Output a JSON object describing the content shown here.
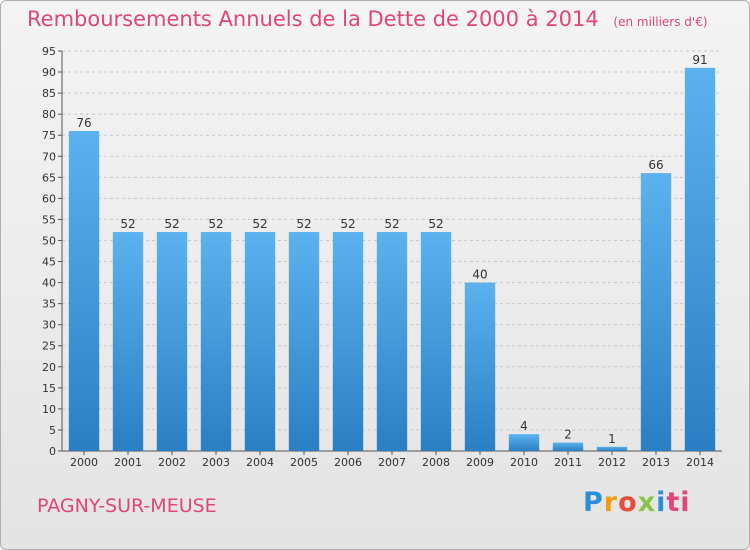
{
  "chart_data": {
    "type": "bar",
    "title": "Remboursements Annuels de la Dette de 2000 à 2014",
    "unit_note": "(en milliers d'€)",
    "categories": [
      "2000",
      "2001",
      "2002",
      "2003",
      "2004",
      "2005",
      "2006",
      "2007",
      "2008",
      "2009",
      "2010",
      "2011",
      "2012",
      "2013",
      "2014"
    ],
    "values": [
      76,
      52,
      52,
      52,
      52,
      52,
      52,
      52,
      52,
      40,
      4,
      2,
      1,
      66,
      91
    ],
    "ylim": [
      0,
      95
    ],
    "yticks": [
      0,
      5,
      10,
      15,
      20,
      25,
      30,
      35,
      40,
      45,
      50,
      55,
      60,
      65,
      70,
      75,
      80,
      85,
      90,
      95
    ],
    "grid": true,
    "bar_color": "#4a9fe0"
  },
  "footer": {
    "commune": "PAGNY-SUR-MEUSE",
    "logo_letters": [
      "P",
      "r",
      "o",
      "x",
      "i",
      "ti"
    ]
  }
}
